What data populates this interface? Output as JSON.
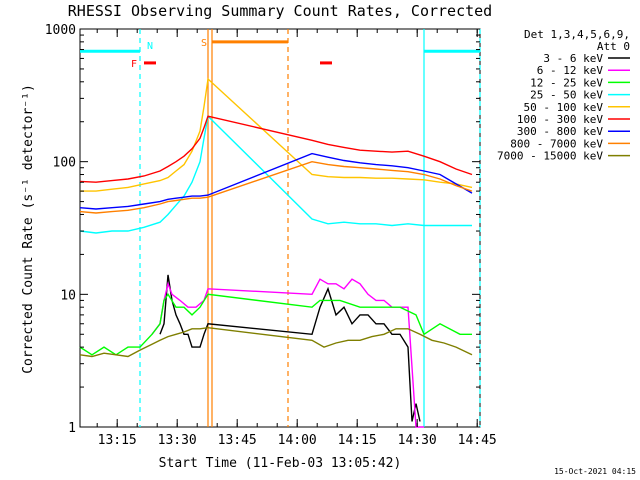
{
  "chart_data": {
    "type": "line",
    "title": "RHESSI Observing Summary Count Rates, Corrected",
    "xlabel": "Start Time (11-Feb-03 13:05:42)",
    "ylabel": "Corrected Count Rate (s⁻¹ detector⁻¹)",
    "yscale": "log",
    "ylim": [
      1,
      1000
    ],
    "xlim_minutes": [
      0,
      100
    ],
    "y_ticks": [
      {
        "value": 1,
        "label": "1"
      },
      {
        "value": 10,
        "label": "10"
      },
      {
        "value": 100,
        "label": "100"
      },
      {
        "value": 1000,
        "label": "1000"
      }
    ],
    "x_ticks": [
      {
        "minute": 9.3,
        "label": "13:15"
      },
      {
        "minute": 24.3,
        "label": "13:30"
      },
      {
        "minute": 39.3,
        "label": "13:45"
      },
      {
        "minute": 54.3,
        "label": "14:00"
      },
      {
        "minute": 69.3,
        "label": "14:15"
      },
      {
        "minute": 84.3,
        "label": "14:30"
      },
      {
        "minute": 99.3,
        "label": "14:45"
      }
    ],
    "legend_header": [
      "Det 1,3,4,5,6,9,",
      "Att 0"
    ],
    "series": [
      {
        "name": "3 - 6 keV",
        "color": "#000000",
        "t": [
          20,
          21,
          22,
          23,
          24,
          25,
          26,
          27,
          28,
          29,
          30,
          31,
          32,
          58,
          60,
          62,
          64,
          66,
          68,
          70,
          72,
          74,
          76,
          78,
          80,
          82,
          83,
          84,
          85
        ],
        "y": [
          5,
          6,
          14,
          9,
          7,
          6,
          5,
          5,
          4,
          4,
          4,
          5,
          6,
          5,
          8,
          11,
          7,
          8,
          6,
          7,
          7,
          6,
          6,
          5,
          5,
          4,
          1.1,
          1.5,
          1.1
        ]
      },
      {
        "name": "6 - 12 keV",
        "color": "#ff00ff",
        "t": [
          18,
          20,
          21,
          22,
          23,
          25,
          27,
          29,
          31,
          32,
          58,
          60,
          62,
          64,
          66,
          68,
          70,
          72,
          74,
          76,
          78,
          80,
          82,
          84,
          86
        ],
        "y": [
          5,
          6,
          9,
          12,
          10,
          9,
          8,
          8,
          9,
          11,
          10,
          13,
          12,
          12,
          11,
          13,
          12,
          10,
          9,
          9,
          8,
          8,
          8,
          1,
          1
        ]
      },
      {
        "name": "12 - 25 keV",
        "color": "#00ff00",
        "t": [
          0,
          3,
          6,
          9,
          12,
          15,
          18,
          20,
          21,
          22,
          24,
          26,
          28,
          30,
          32,
          58,
          60,
          65,
          70,
          75,
          80,
          84,
          86,
          90,
          95,
          98
        ],
        "y": [
          4,
          3.5,
          4,
          3.5,
          4,
          4,
          5,
          6,
          9,
          10,
          8,
          8,
          7,
          8,
          10,
          8,
          9,
          9,
          8,
          8,
          8,
          7,
          5,
          6,
          5,
          5
        ]
      },
      {
        "name": "25 - 50 keV",
        "color": "#00ffff",
        "t": [
          0,
          4,
          8,
          12,
          16,
          20,
          22,
          24,
          26,
          28,
          30,
          31,
          32,
          58,
          62,
          66,
          70,
          74,
          78,
          82,
          86,
          90,
          94,
          98
        ],
        "y": [
          30,
          29,
          30,
          30,
          32,
          35,
          40,
          47,
          55,
          70,
          100,
          150,
          220,
          37,
          34,
          35,
          34,
          34,
          33,
          34,
          33,
          33,
          33,
          33
        ]
      },
      {
        "name": "50 - 100 keV",
        "color": "#ffc400",
        "t": [
          0,
          4,
          8,
          12,
          16,
          20,
          22,
          24,
          26,
          28,
          30,
          31,
          32,
          58,
          62,
          66,
          70,
          74,
          78,
          82,
          86,
          90,
          94,
          98
        ],
        "y": [
          60,
          60,
          62,
          64,
          68,
          72,
          76,
          85,
          95,
          120,
          170,
          260,
          420,
          80,
          77,
          76,
          76,
          75,
          75,
          74,
          73,
          70,
          68,
          64
        ]
      },
      {
        "name": "100 - 300 keV",
        "color": "#ff0000",
        "t": [
          0,
          4,
          8,
          12,
          16,
          20,
          22,
          24,
          26,
          28,
          30,
          31,
          32,
          58,
          62,
          66,
          70,
          74,
          78,
          82,
          86,
          90,
          94,
          98
        ],
        "y": [
          71,
          70,
          72,
          74,
          78,
          85,
          92,
          100,
          110,
          125,
          150,
          180,
          220,
          145,
          135,
          128,
          122,
          120,
          118,
          120,
          110,
          100,
          88,
          80
        ]
      },
      {
        "name": "300 - 800 keV",
        "color": "#0000ff",
        "t": [
          0,
          4,
          8,
          12,
          16,
          20,
          22,
          24,
          26,
          28,
          30,
          32,
          58,
          62,
          66,
          70,
          74,
          78,
          82,
          86,
          90,
          94,
          98
        ],
        "y": [
          45,
          44,
          45,
          46,
          48,
          50,
          52,
          53,
          54,
          55,
          55,
          56,
          115,
          108,
          102,
          98,
          95,
          93,
          90,
          85,
          80,
          68,
          58
        ]
      },
      {
        "name": "800 - 7000 keV",
        "color": "#ff8000",
        "t": [
          0,
          4,
          8,
          12,
          16,
          20,
          22,
          24,
          26,
          28,
          30,
          32,
          58,
          62,
          66,
          70,
          74,
          78,
          82,
          86,
          90,
          94,
          98
        ],
        "y": [
          42,
          41,
          42,
          43,
          45,
          48,
          50,
          51,
          52,
          53,
          53,
          54,
          100,
          95,
          92,
          90,
          88,
          86,
          84,
          80,
          74,
          66,
          60
        ]
      },
      {
        "name": "7000 - 15000 keV",
        "color": "#7f7f00",
        "t": [
          0,
          3,
          6,
          9,
          12,
          15,
          18,
          20,
          22,
          24,
          26,
          28,
          30,
          32,
          58,
          61,
          64,
          67,
          70,
          73,
          76,
          79,
          82,
          85,
          88,
          91,
          94,
          98
        ],
        "y": [
          3.5,
          3.4,
          3.6,
          3.5,
          3.4,
          3.8,
          4.2,
          4.5,
          4.8,
          5,
          5.2,
          5.5,
          5.5,
          5.6,
          4.5,
          4,
          4.3,
          4.5,
          4.5,
          4.8,
          5,
          5.5,
          5.5,
          5,
          4.5,
          4.3,
          4,
          3.5
        ]
      }
    ],
    "flags": [
      {
        "label": "N",
        "color": "#00ffff",
        "t_start": 0,
        "t_end": 15,
        "y": 680
      },
      {
        "label": "",
        "color": "#00ffff",
        "t_start": 86,
        "t_end": 100,
        "y": 680
      },
      {
        "label": "F",
        "color": "#ff0000",
        "t_start": 16,
        "t_end": 19,
        "y": 555
      },
      {
        "label": "",
        "color": "#ff0000",
        "t_start": 60,
        "t_end": 63,
        "y": 555
      },
      {
        "label": "S",
        "color": "#ff8000",
        "t_start": 33,
        "t_end": 52,
        "y": 800
      }
    ],
    "vlines": [
      {
        "t": 15,
        "color": "#00ffff",
        "dashed": true
      },
      {
        "t": 32,
        "color": "#ff8000",
        "dashed": false
      },
      {
        "t": 33,
        "color": "#ff8000",
        "dashed": false
      },
      {
        "t": 52,
        "color": "#ff8000",
        "dashed": true
      },
      {
        "t": 86,
        "color": "#00ffff",
        "dashed": false
      },
      {
        "t": 100,
        "color": "#00ffff",
        "dashed": true
      }
    ]
  },
  "timestamp": "15-Oct-2021 04:15"
}
